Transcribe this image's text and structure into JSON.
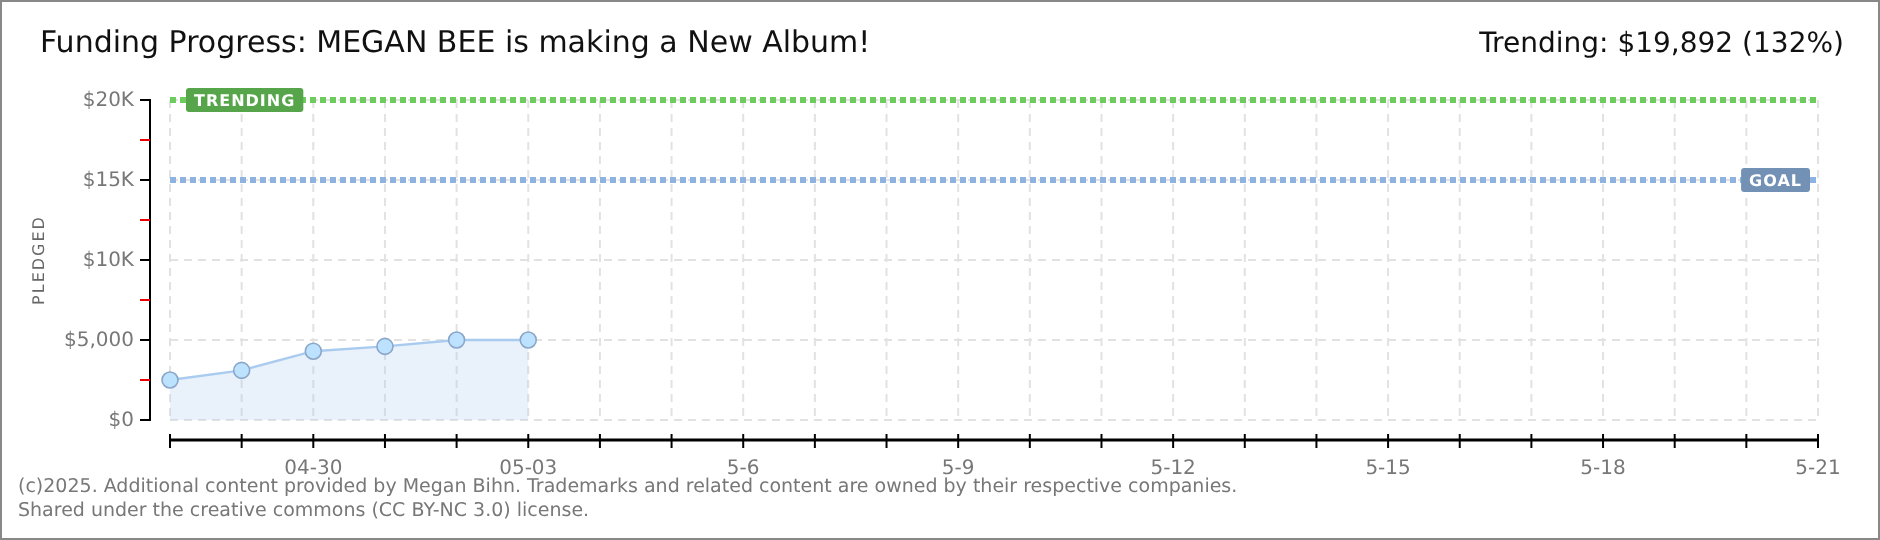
{
  "chart_data": {
    "type": "area",
    "title": "Funding Progress: MEGAN BEE is making a New Album!",
    "subtitle": "Trending: $19,892 (132%)",
    "ylabel": "PLEDGED",
    "x": [
      "--04-28",
      "--04-29",
      "--04-30",
      "--05-01",
      "--05-02",
      "--05-03"
    ],
    "series": [
      {
        "color": "#a9cbf0",
        "values": [
          2500,
          3100,
          4300,
          4600,
          5000,
          5000
        ]
      }
    ],
    "marker": "circle",
    "grid": true,
    "xlim": [
      "--04-28",
      "--05-21"
    ],
    "xticks": [
      {
        "value": "--04-28",
        "label": null
      },
      {
        "value": "--04-29",
        "label": null
      },
      {
        "value": "--04-30",
        "label": "04-30"
      },
      {
        "value": "--05-01",
        "label": null
      },
      {
        "value": "--05-02",
        "label": null
      },
      {
        "value": "--05-03",
        "label": "05-03"
      },
      {
        "value": "--05-04",
        "label": null
      },
      {
        "value": "--05-05",
        "label": null
      },
      {
        "value": "--05-06",
        "label": "5-6"
      },
      {
        "value": "--05-07",
        "label": null
      },
      {
        "value": "--05-08",
        "label": null
      },
      {
        "value": "--05-09",
        "label": "5-9"
      },
      {
        "value": "--05-10",
        "label": null
      },
      {
        "value": "--05-11",
        "label": null
      },
      {
        "value": "--05-12",
        "label": "5-12"
      },
      {
        "value": "--05-13",
        "label": null
      },
      {
        "value": "--05-14",
        "label": null
      },
      {
        "value": "--05-15",
        "label": "5-15"
      },
      {
        "value": "--05-16",
        "label": null
      },
      {
        "value": "--05-17",
        "label": null
      },
      {
        "value": "--05-18",
        "label": "5-18"
      },
      {
        "value": "--05-19",
        "label": null
      },
      {
        "value": "--05-20",
        "label": null
      },
      {
        "value": "--05-21",
        "label": "5-21"
      }
    ],
    "ylim": [
      0,
      20000
    ],
    "yticks": [
      {
        "value": 0,
        "label": "$0"
      },
      {
        "value": 2500,
        "label": null
      },
      {
        "value": 5000,
        "label": "$5,000"
      },
      {
        "value": 7500,
        "label": null
      },
      {
        "value": 10000,
        "label": "$10K"
      },
      {
        "value": 12500,
        "label": null
      },
      {
        "value": 15000,
        "label": "$15K"
      },
      {
        "value": 17500,
        "label": null
      },
      {
        "value": 20000,
        "label": "$20K"
      }
    ],
    "ref_lines": [
      {
        "axis": "y",
        "value": 20000,
        "label": "TRENDING",
        "color": "#6ccc5c",
        "line_style": "dotted"
      },
      {
        "axis": "y",
        "value": 15000,
        "label": "GOAL",
        "color": "#8fb3e0",
        "line_style": "dotted"
      }
    ],
    "annotations": [
      "(c)2025. Additional content provided by Megan Bihn. Trademarks and related content are owned by their respective companies.",
      "Shared under the creative commons (CC BY-NC 3.0) license."
    ]
  }
}
